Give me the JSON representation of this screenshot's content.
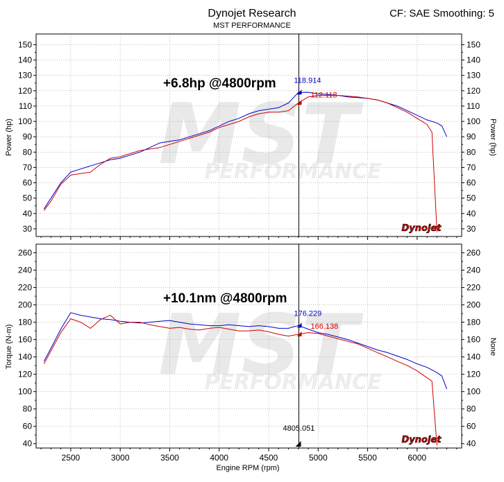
{
  "header": {
    "title": "Dynojet Research",
    "subtitle": "MST PERFORMANCE",
    "settings": "CF: SAE Smoothing: 5"
  },
  "watermark": {
    "main": "MST",
    "sub": "PERFORMANCE",
    "logo": "Dynojet"
  },
  "colors": {
    "run1": "#0000cc",
    "run2": "#cc0000",
    "cursor": "#000000",
    "frame": "#000000",
    "grid": "#999999"
  },
  "chart_data": [
    {
      "type": "line",
      "ylabel": "Power (hp)",
      "ylabel_right": "Power (hp)",
      "xlim": [
        2150,
        6450
      ],
      "ylim": [
        25,
        157
      ],
      "yticks": [
        30,
        40,
        50,
        60,
        70,
        80,
        90,
        100,
        110,
        120,
        130,
        140,
        150
      ],
      "grid": true,
      "annotation": "+6.8hp @4800rpm",
      "cursor": {
        "x": 4805,
        "labels": [
          "118.914",
          "112.118"
        ]
      },
      "series": [
        {
          "x": [
            2230,
            2300,
            2400,
            2500,
            2600,
            2700,
            2800,
            2900,
            3000,
            3100,
            3200,
            3300,
            3400,
            3500,
            3600,
            3700,
            3800,
            3900,
            4000,
            4100,
            4200,
            4300,
            4400,
            4500,
            4600,
            4700,
            4800,
            4900,
            5000,
            5100,
            5200,
            5300,
            5400,
            5500,
            5600,
            5700,
            5800,
            5900,
            6000,
            6100,
            6200,
            6250,
            6300
          ],
          "values": [
            43,
            50,
            60,
            67,
            69,
            71,
            73,
            75,
            76,
            78,
            80,
            83,
            86,
            87,
            88,
            90,
            92,
            94,
            97,
            100,
            102,
            105,
            107,
            108,
            109,
            112,
            118.9,
            119,
            118,
            117.5,
            117,
            116,
            115.5,
            115,
            114,
            112,
            110,
            107,
            104,
            101,
            99,
            97,
            90
          ]
        },
        {
          "x": [
            2230,
            2300,
            2400,
            2500,
            2600,
            2700,
            2800,
            2900,
            3000,
            3100,
            3200,
            3300,
            3400,
            3500,
            3600,
            3700,
            3800,
            3900,
            4000,
            4100,
            4200,
            4300,
            4400,
            4500,
            4600,
            4700,
            4800,
            4900,
            5000,
            5100,
            5200,
            5300,
            5400,
            5500,
            5600,
            5700,
            5800,
            5900,
            6000,
            6050,
            6100,
            6150,
            6200
          ],
          "values": [
            42,
            48,
            59,
            65,
            66,
            67,
            72,
            76,
            77,
            79,
            81,
            82,
            83,
            85,
            87,
            89,
            91,
            93,
            96,
            98,
            100,
            103,
            105,
            106,
            106,
            107,
            112.1,
            116,
            117,
            117,
            117,
            116.5,
            116,
            115,
            114,
            112,
            109,
            106,
            102,
            100,
            98,
            93,
            28
          ]
        }
      ]
    },
    {
      "type": "line",
      "xlabel": "Engine RPM (rpm)",
      "ylabel": "Torque (N-m)",
      "ylabel_right": "None",
      "xlim": [
        2150,
        6450
      ],
      "ylim": [
        35,
        270
      ],
      "xticks": [
        2500,
        3000,
        3500,
        4000,
        4500,
        5000,
        5500,
        6000
      ],
      "yticks": [
        40,
        60,
        80,
        100,
        120,
        140,
        160,
        180,
        200,
        220,
        240,
        260
      ],
      "grid": true,
      "annotation": "+10.1nm @4800rpm",
      "cursor": {
        "x": 4805,
        "labels": [
          "176.229",
          "166.138",
          "4805.051"
        ]
      },
      "series": [
        {
          "x": [
            2230,
            2300,
            2400,
            2500,
            2600,
            2700,
            2800,
            2900,
            3000,
            3100,
            3200,
            3300,
            3400,
            3500,
            3600,
            3700,
            3800,
            3900,
            4000,
            4100,
            4200,
            4300,
            4400,
            4500,
            4600,
            4700,
            4800,
            4900,
            5000,
            5100,
            5200,
            5300,
            5400,
            5500,
            5600,
            5700,
            5800,
            5900,
            6000,
            6100,
            6200,
            6250,
            6300
          ],
          "values": [
            135,
            150,
            172,
            191,
            188,
            186,
            184,
            183,
            181,
            180,
            179,
            180,
            181,
            182,
            180,
            178,
            177,
            176,
            176,
            177,
            176,
            175,
            176,
            175,
            173,
            173,
            176.2,
            172,
            168,
            166,
            163,
            160,
            156,
            152,
            148,
            145,
            141,
            137,
            132,
            128,
            122,
            118,
            103
          ]
        },
        {
          "x": [
            2230,
            2300,
            2400,
            2500,
            2600,
            2700,
            2800,
            2900,
            3000,
            3100,
            3200,
            3300,
            3400,
            3500,
            3600,
            3700,
            3800,
            3900,
            4000,
            4100,
            4200,
            4300,
            4400,
            4500,
            4600,
            4700,
            4800,
            4900,
            5000,
            5100,
            5200,
            5300,
            5400,
            5500,
            5600,
            5700,
            5800,
            5900,
            6000,
            6050,
            6100,
            6150,
            6200
          ],
          "values": [
            132,
            147,
            168,
            184,
            180,
            173,
            183,
            188,
            178,
            180,
            180,
            177,
            175,
            173,
            174,
            172,
            171,
            173,
            174,
            172,
            170,
            170,
            171,
            169,
            166,
            164,
            166.1,
            168,
            167,
            164,
            161,
            158,
            155,
            150,
            145,
            140,
            135,
            130,
            124,
            120,
            116,
            112,
            38
          ]
        }
      ]
    }
  ]
}
